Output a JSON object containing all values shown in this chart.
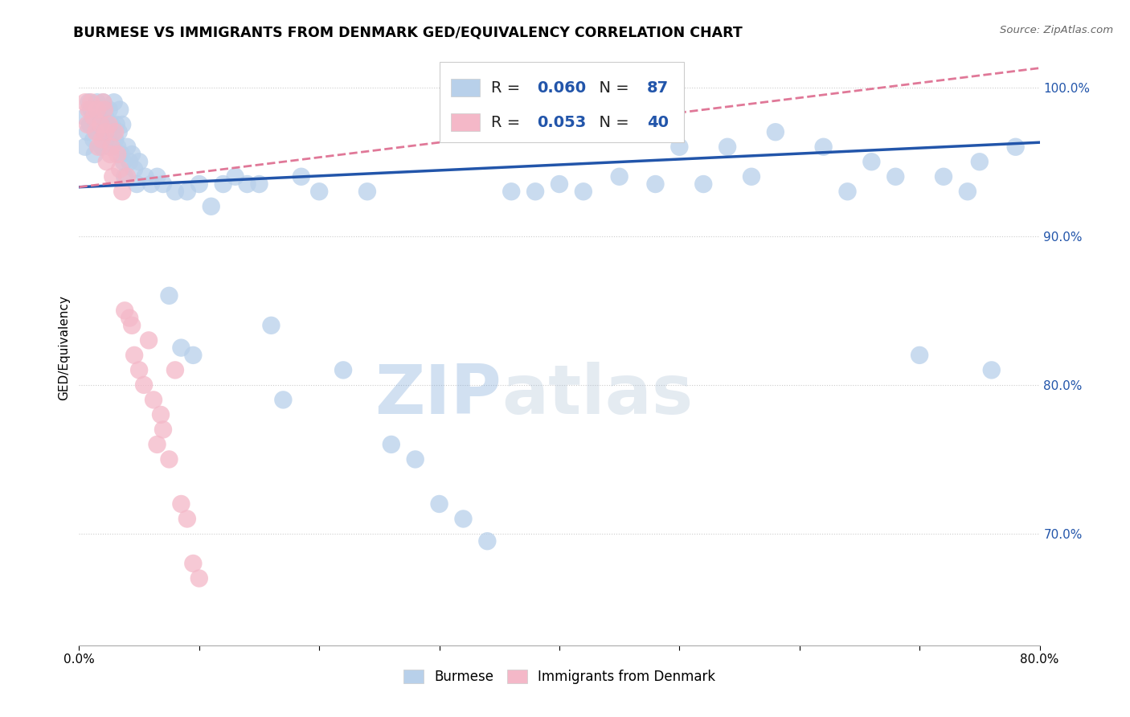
{
  "title": "BURMESE VS IMMIGRANTS FROM DENMARK GED/EQUIVALENCY CORRELATION CHART",
  "source": "Source: ZipAtlas.com",
  "ylabel": "GED/Equivalency",
  "ytick_labels": [
    "100.0%",
    "90.0%",
    "80.0%",
    "70.0%"
  ],
  "ytick_values": [
    1.0,
    0.9,
    0.8,
    0.7
  ],
  "xlim": [
    0.0,
    0.8
  ],
  "ylim": [
    0.625,
    1.025
  ],
  "blue_R": 0.06,
  "blue_N": 87,
  "pink_R": 0.053,
  "pink_N": 40,
  "blue_color": "#b8d0ea",
  "pink_color": "#f4b8c8",
  "blue_line_color": "#2255aa",
  "pink_line_color": "#e07898",
  "legend_label_blue": "Burmese",
  "legend_label_pink": "Immigrants from Denmark",
  "watermark_zip": "ZIP",
  "watermark_atlas": "atlas",
  "blue_line_x0": 0.0,
  "blue_line_y0": 0.933,
  "blue_line_x1": 0.8,
  "blue_line_y1": 0.963,
  "pink_line_x0": 0.0,
  "pink_line_y0": 0.933,
  "pink_line_x1": 0.8,
  "pink_line_y1": 1.013,
  "blue_x": [
    0.005,
    0.005,
    0.007,
    0.008,
    0.009,
    0.01,
    0.012,
    0.013,
    0.014,
    0.015,
    0.016,
    0.017,
    0.018,
    0.019,
    0.02,
    0.021,
    0.022,
    0.022,
    0.023,
    0.024,
    0.025,
    0.026,
    0.027,
    0.028,
    0.029,
    0.03,
    0.031,
    0.032,
    0.033,
    0.034,
    0.035,
    0.036,
    0.037,
    0.038,
    0.04,
    0.042,
    0.044,
    0.046,
    0.048,
    0.05,
    0.055,
    0.06,
    0.065,
    0.07,
    0.075,
    0.08,
    0.085,
    0.09,
    0.095,
    0.1,
    0.11,
    0.12,
    0.13,
    0.14,
    0.15,
    0.16,
    0.17,
    0.185,
    0.2,
    0.22,
    0.24,
    0.26,
    0.28,
    0.3,
    0.32,
    0.34,
    0.36,
    0.38,
    0.4,
    0.42,
    0.45,
    0.48,
    0.5,
    0.52,
    0.54,
    0.56,
    0.58,
    0.62,
    0.64,
    0.66,
    0.68,
    0.7,
    0.72,
    0.74,
    0.75,
    0.76,
    0.78
  ],
  "blue_y": [
    0.98,
    0.96,
    0.97,
    0.99,
    0.975,
    0.985,
    0.965,
    0.955,
    0.975,
    0.99,
    0.985,
    0.97,
    0.975,
    0.96,
    0.99,
    0.985,
    0.98,
    0.965,
    0.975,
    0.97,
    0.985,
    0.96,
    0.975,
    0.97,
    0.99,
    0.965,
    0.975,
    0.96,
    0.97,
    0.985,
    0.955,
    0.975,
    0.95,
    0.94,
    0.96,
    0.95,
    0.955,
    0.945,
    0.935,
    0.95,
    0.94,
    0.935,
    0.94,
    0.935,
    0.86,
    0.93,
    0.825,
    0.93,
    0.82,
    0.935,
    0.92,
    0.935,
    0.94,
    0.935,
    0.935,
    0.84,
    0.79,
    0.94,
    0.93,
    0.81,
    0.93,
    0.76,
    0.75,
    0.72,
    0.71,
    0.695,
    0.93,
    0.93,
    0.935,
    0.93,
    0.94,
    0.935,
    0.96,
    0.935,
    0.96,
    0.94,
    0.97,
    0.96,
    0.93,
    0.95,
    0.94,
    0.82,
    0.94,
    0.93,
    0.95,
    0.81,
    0.96
  ],
  "pink_x": [
    0.005,
    0.007,
    0.008,
    0.01,
    0.012,
    0.014,
    0.015,
    0.016,
    0.018,
    0.019,
    0.02,
    0.021,
    0.022,
    0.023,
    0.025,
    0.026,
    0.027,
    0.028,
    0.03,
    0.032,
    0.034,
    0.036,
    0.038,
    0.04,
    0.042,
    0.044,
    0.046,
    0.05,
    0.054,
    0.058,
    0.062,
    0.065,
    0.068,
    0.07,
    0.075,
    0.08,
    0.085,
    0.09,
    0.095,
    0.1
  ],
  "pink_y": [
    0.99,
    0.975,
    0.985,
    0.99,
    0.98,
    0.97,
    0.985,
    0.96,
    0.975,
    0.965,
    0.99,
    0.985,
    0.97,
    0.95,
    0.975,
    0.955,
    0.96,
    0.94,
    0.97,
    0.955,
    0.945,
    0.93,
    0.85,
    0.94,
    0.845,
    0.84,
    0.82,
    0.81,
    0.8,
    0.83,
    0.79,
    0.76,
    0.78,
    0.77,
    0.75,
    0.81,
    0.72,
    0.71,
    0.68,
    0.67
  ]
}
